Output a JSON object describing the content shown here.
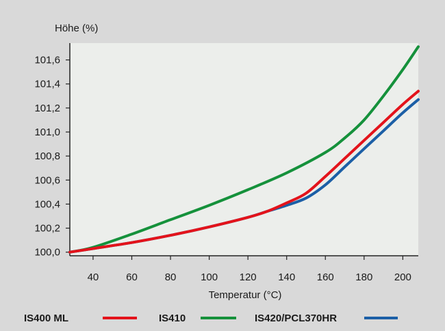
{
  "chart_data": {
    "type": "line",
    "title": "",
    "xlabel": "Temperatur (°C)",
    "ylabel": "Höhe (%)",
    "xlim": [
      28,
      208
    ],
    "ylim": [
      99.97,
      101.74
    ],
    "x_ticks": [
      40,
      60,
      80,
      100,
      120,
      140,
      160,
      180,
      200
    ],
    "x_tick_labels": [
      "40",
      "60",
      "80",
      "100",
      "120",
      "140",
      "160",
      "180",
      "200"
    ],
    "y_ticks": [
      100.0,
      100.2,
      100.4,
      100.6,
      100.8,
      101.0,
      101.2,
      101.4,
      101.6
    ],
    "y_tick_labels": [
      "100,0",
      "100,2",
      "100,4",
      "100,6",
      "100,8",
      "101,0",
      "101,2",
      "101,4",
      "101,6"
    ],
    "grid": false,
    "legend_position": "bottom",
    "series": [
      {
        "name": "IS400 ML",
        "color": "#e3131b",
        "x": [
          28,
          40,
          60,
          80,
          100,
          120,
          130,
          140,
          150,
          160,
          170,
          180,
          190,
          200,
          208
        ],
        "y": [
          100.0,
          100.03,
          100.08,
          100.14,
          100.21,
          100.29,
          100.34,
          100.41,
          100.49,
          100.63,
          100.78,
          100.93,
          101.08,
          101.23,
          101.34
        ]
      },
      {
        "name": "IS410",
        "color": "#15913b",
        "x": [
          28,
          40,
          60,
          80,
          100,
          120,
          140,
          160,
          170,
          180,
          190,
          200,
          208
        ],
        "y": [
          100.0,
          100.04,
          100.15,
          100.27,
          100.39,
          100.52,
          100.66,
          100.83,
          100.95,
          101.1,
          101.3,
          101.52,
          101.71
        ]
      },
      {
        "name": "IS420/PCL370HR",
        "color": "#1c5fa6",
        "x": [
          28,
          40,
          60,
          80,
          100,
          120,
          130,
          140,
          150,
          160,
          170,
          180,
          190,
          200,
          208
        ],
        "y": [
          100.0,
          100.03,
          100.08,
          100.14,
          100.21,
          100.29,
          100.34,
          100.39,
          100.45,
          100.56,
          100.71,
          100.86,
          101.01,
          101.16,
          101.27
        ]
      }
    ]
  }
}
